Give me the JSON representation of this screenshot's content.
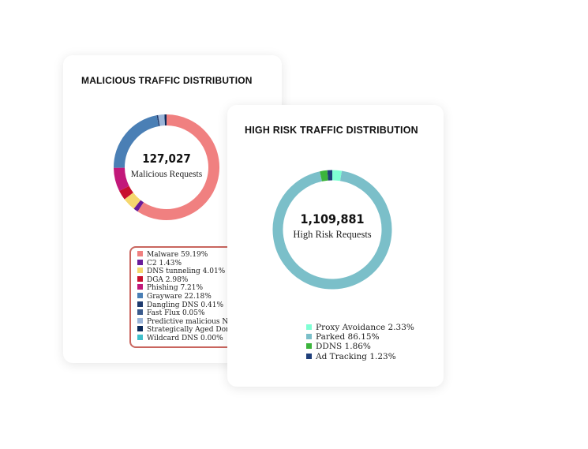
{
  "cards": [
    {
      "title": "MALICIOUS TRAFFIC DISTRIBUTION",
      "total": "127,027",
      "total_label": "Malicious Requests",
      "items": [
        {
          "label": "Malware 59.19%",
          "value": 59.19,
          "color": "#f08080"
        },
        {
          "label": "C2 1.43%",
          "value": 1.43,
          "color": "#6a1b9a"
        },
        {
          "label": "DNS tunneling 4.01%",
          "value": 4.01,
          "color": "#f5d76e"
        },
        {
          "label": "DGA 2.98%",
          "value": 2.98,
          "color": "#c8102e"
        },
        {
          "label": "Phishing 7.21%",
          "value": 7.21,
          "color": "#c2187a"
        },
        {
          "label": "Grayware 22.18%",
          "value": 22.18,
          "color": "#4a7fb5"
        },
        {
          "label": "Dangling DNS 0.41%",
          "value": 0.41,
          "color": "#1f3a6e"
        },
        {
          "label": "Fast Flux 0.05%",
          "value": 0.05,
          "color": "#3a5a8c"
        },
        {
          "label": "Predictive malicious NRD",
          "value": 1.9,
          "color": "#9ab4d8"
        },
        {
          "label": "Strategically Aged Domai",
          "value": 0.64,
          "color": "#0b2a5a"
        },
        {
          "label": "Wildcard DNS 0.00%",
          "value": 0.0,
          "color": "#40c0cb"
        }
      ]
    },
    {
      "title": "HIGH RISK TRAFFIC DISTRIBUTION",
      "total": "1,109,881",
      "total_label": "High Risk Requests",
      "items": [
        {
          "label": "Proxy Avoidance 2.33%",
          "value": 2.33,
          "color": "#7fffd4"
        },
        {
          "label": "Parked 86.15%",
          "value": 86.15,
          "color": "#7bbfc9"
        },
        {
          "label": "DDNS 1.86%",
          "value": 1.86,
          "color": "#3cb43c"
        },
        {
          "label": "Ad Tracking 1.23%",
          "value": 1.23,
          "color": "#1f3f7a"
        }
      ]
    }
  ]
}
